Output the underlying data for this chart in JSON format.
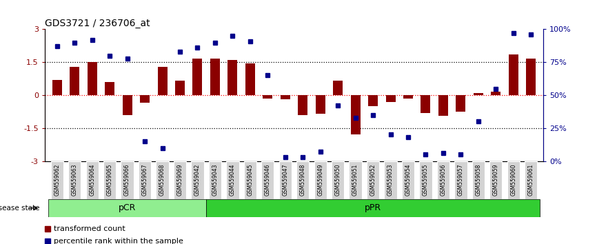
{
  "title": "GDS3721 / 236706_at",
  "samples": [
    "GSM559062",
    "GSM559063",
    "GSM559064",
    "GSM559065",
    "GSM559066",
    "GSM559067",
    "GSM559068",
    "GSM559069",
    "GSM559042",
    "GSM559043",
    "GSM559044",
    "GSM559045",
    "GSM559046",
    "GSM559047",
    "GSM559048",
    "GSM559049",
    "GSM559050",
    "GSM559051",
    "GSM559052",
    "GSM559053",
    "GSM559054",
    "GSM559055",
    "GSM559056",
    "GSM559057",
    "GSM559058",
    "GSM559059",
    "GSM559060",
    "GSM559061"
  ],
  "bar_values": [
    0.7,
    1.3,
    1.5,
    0.6,
    -0.9,
    -0.35,
    1.3,
    0.65,
    1.65,
    1.65,
    1.6,
    1.45,
    -0.15,
    -0.2,
    -0.9,
    -0.85,
    0.65,
    -1.8,
    -0.5,
    -0.3,
    -0.15,
    -0.8,
    -0.95,
    -0.75,
    0.1,
    0.15,
    1.85,
    1.65
  ],
  "dot_values": [
    87,
    90,
    92,
    80,
    78,
    15,
    10,
    83,
    86,
    90,
    95,
    91,
    65,
    3,
    3,
    7,
    42,
    33,
    35,
    20,
    18,
    5,
    6,
    5,
    30,
    55,
    97,
    96
  ],
  "pcr_count": 9,
  "ppr_count": 19,
  "bar_color": "#8B0000",
  "dot_color": "#00008B",
  "background_color": "#ffffff",
  "ylim_left": [
    -3,
    3
  ],
  "ylim_right": [
    0,
    100
  ],
  "yticks_left": [
    -3,
    -1.5,
    0,
    1.5,
    3
  ],
  "yticks_right": [
    0,
    25,
    50,
    75,
    100
  ],
  "ytick_labels_right": [
    "0%",
    "25%",
    "50%",
    "75%",
    "100%"
  ],
  "pcr_color": "#90EE90",
  "ppr_color": "#32CD32",
  "disease_state_label": "disease state",
  "legend_bar_label": "transformed count",
  "legend_dot_label": "percentile rank within the sample",
  "pcr_label": "pCR",
  "ppr_label": "pPR"
}
